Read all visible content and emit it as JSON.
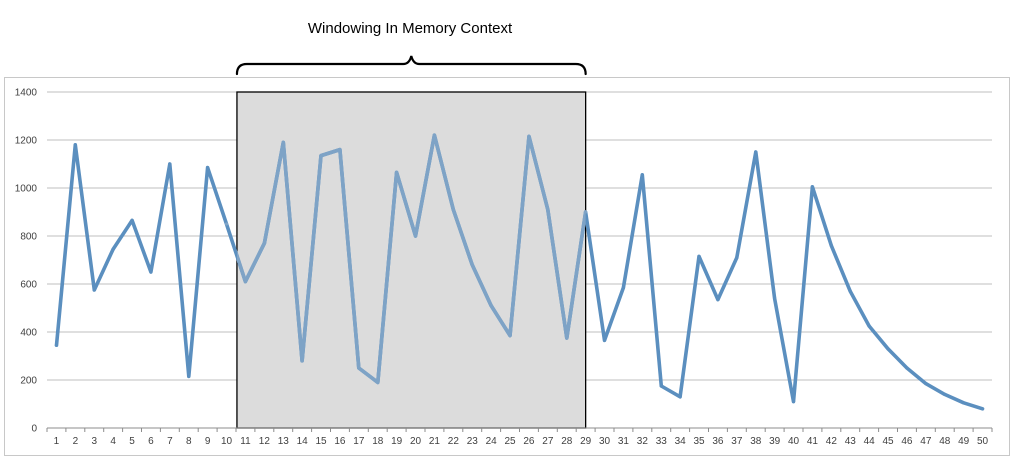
{
  "annotation": {
    "title": "Windowing In Memory Context",
    "window_start_category": 10,
    "window_end_category": 29,
    "window_fill": "#dcdcdc",
    "window_stroke": "#000000"
  },
  "colors": {
    "series": "#5b8fbf",
    "series_in_window": "#7ea3c6",
    "grid": "#bfbfbf",
    "axis": "#8c8c8c"
  },
  "chart_data": {
    "type": "line",
    "categories": [
      "1",
      "2",
      "3",
      "4",
      "5",
      "6",
      "7",
      "8",
      "9",
      "10",
      "11",
      "12",
      "13",
      "14",
      "15",
      "16",
      "17",
      "18",
      "19",
      "20",
      "21",
      "22",
      "23",
      "24",
      "25",
      "26",
      "27",
      "28",
      "29",
      "30",
      "31",
      "32",
      "33",
      "34",
      "35",
      "36",
      "37",
      "38",
      "39",
      "40",
      "41",
      "42",
      "43",
      "44",
      "45",
      "46",
      "47",
      "48",
      "49",
      "50"
    ],
    "series": [
      {
        "values": [
          345,
          1180,
          575,
          745,
          865,
          650,
          1100,
          215,
          1085,
          850,
          610,
          770,
          1190,
          280,
          1135,
          1160,
          250,
          190,
          1065,
          800,
          1220,
          910,
          680,
          510,
          385,
          1215,
          910,
          375,
          900,
          365,
          585,
          1055,
          175,
          130,
          715,
          535,
          710,
          1150,
          540,
          110,
          1005,
          760,
          570,
          425,
          330,
          250,
          185,
          140,
          105,
          80
        ]
      }
    ],
    "ylim": [
      0,
      1400
    ],
    "yticks": [
      "0",
      "200",
      "400",
      "600",
      "800",
      "1000",
      "1200",
      "1400"
    ],
    "grid": true,
    "legend": false,
    "title": "",
    "xlabel": "",
    "ylabel": ""
  }
}
